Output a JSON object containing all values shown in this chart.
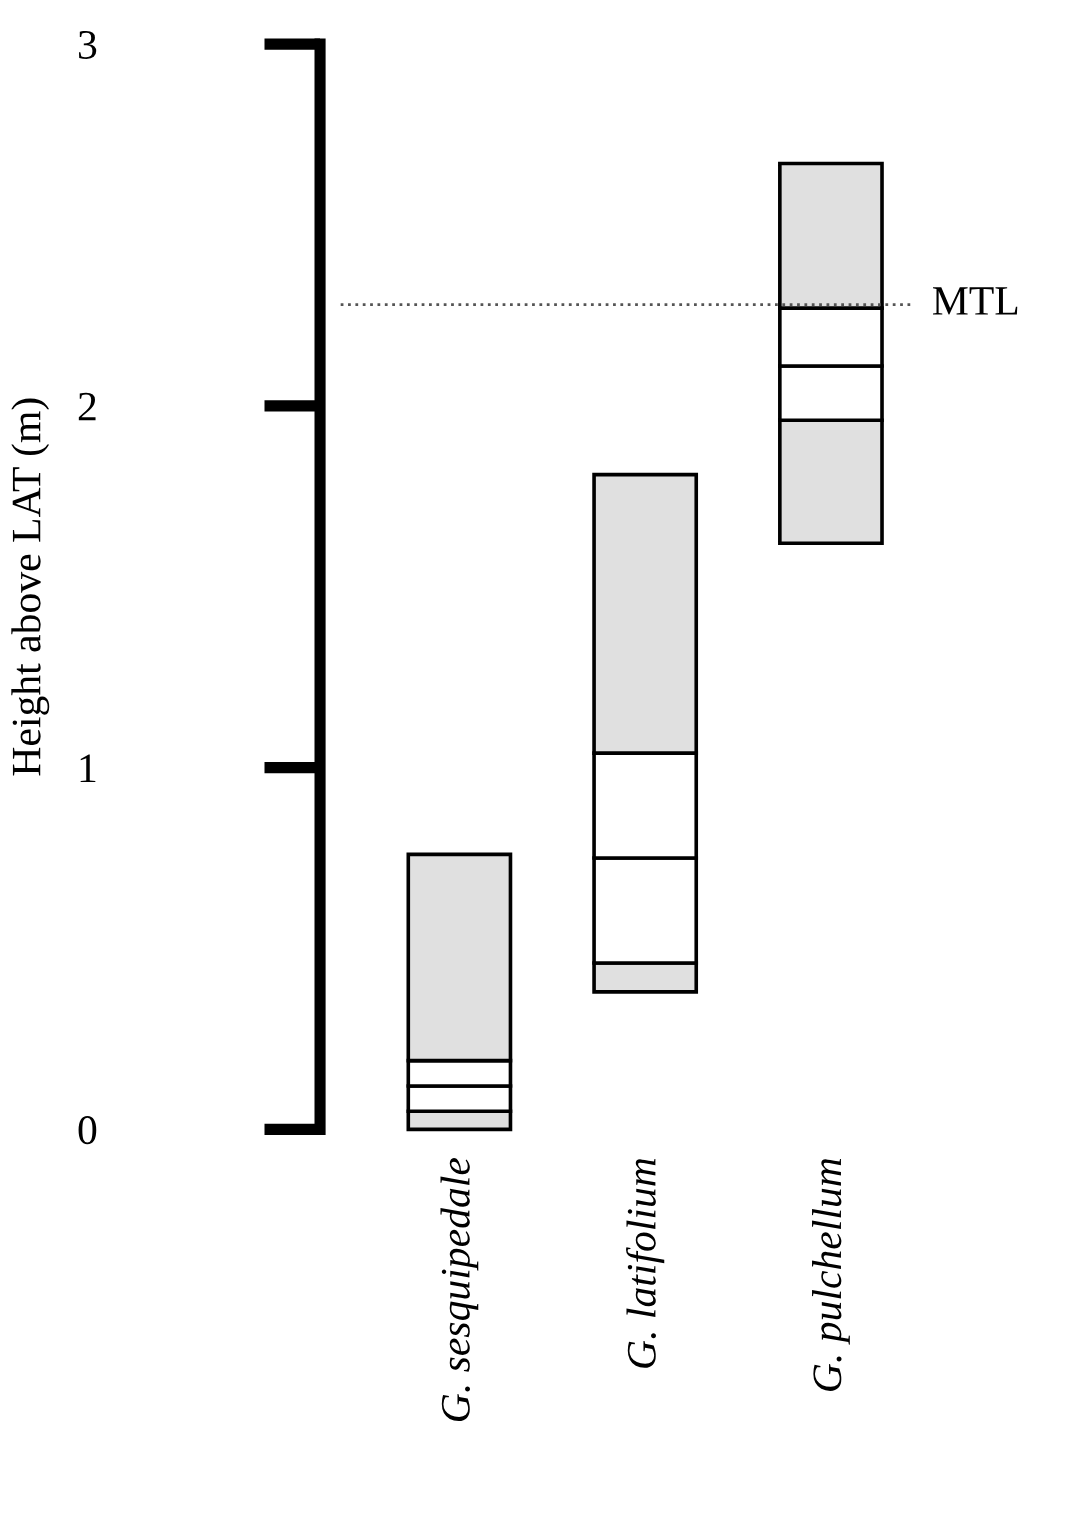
{
  "chart_data": {
    "type": "bar",
    "ylabel": "Height above LAT (m)",
    "categories": [
      "G. sesquipedale",
      "G. latifolium",
      "G. pulchellum"
    ],
    "series": [
      {
        "color": "#e0e0e0",
        "base": [
          0,
          0.38,
          1.62
        ],
        "values": [
          0.05,
          0.08,
          0.34
        ]
      },
      {
        "color": "#ffffff",
        "base": [
          0.05,
          0.46,
          1.96
        ],
        "values": [
          0.07,
          0.29,
          0.15
        ]
      },
      {
        "color": "#ffffff",
        "base": [
          0.12,
          0.75,
          2.11
        ],
        "values": [
          0.07,
          0.29,
          0.16
        ]
      },
      {
        "color": "#e0e0e0",
        "base": [
          0.19,
          1.04,
          2.27
        ],
        "values": [
          0.57,
          0.77,
          0.4
        ]
      }
    ],
    "ylim": [
      0,
      3
    ],
    "yticks": [
      0,
      1,
      2,
      3
    ],
    "ref_lines": [
      {
        "axis": "y",
        "value": 2.28,
        "label": "MTL",
        "line_style": "dotted"
      }
    ]
  }
}
